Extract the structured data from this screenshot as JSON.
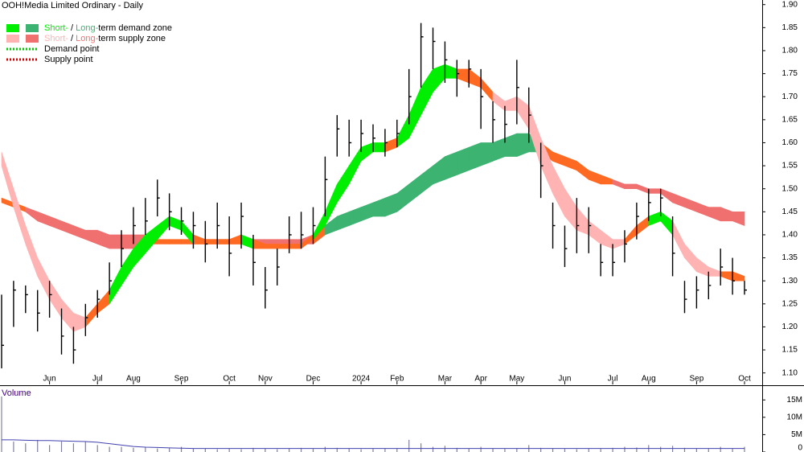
{
  "chart_data": {
    "type": "ohlc",
    "title": "OOH!Media Limited Ordinary - Daily",
    "categories": [
      null,
      null,
      null,
      null,
      "Jun",
      null,
      null,
      null,
      "Jul",
      null,
      null,
      "Aug",
      null,
      null,
      null,
      "Sep",
      null,
      null,
      null,
      "Oct",
      null,
      null,
      "Nov",
      null,
      null,
      null,
      "Dec",
      null,
      null,
      null,
      "2024",
      null,
      null,
      "Feb",
      null,
      null,
      null,
      "Mar",
      null,
      null,
      "Apr",
      null,
      null,
      "May",
      null,
      null,
      null,
      "Jun",
      null,
      null,
      null,
      "Jul",
      null,
      null,
      "Aug",
      null,
      null,
      null,
      "Sep",
      null,
      null,
      null,
      "Oct"
    ],
    "high": [
      1.27,
      1.3,
      1.29,
      1.28,
      1.3,
      1.24,
      1.2,
      1.25,
      1.28,
      1.34,
      1.41,
      1.46,
      1.48,
      1.52,
      1.49,
      1.46,
      1.45,
      1.43,
      1.47,
      1.44,
      1.47,
      1.4,
      1.33,
      1.37,
      1.44,
      1.45,
      1.46,
      1.57,
      1.66,
      1.65,
      1.65,
      1.64,
      1.63,
      1.65,
      1.76,
      1.86,
      1.85,
      1.82,
      1.78,
      1.78,
      1.76,
      1.69,
      1.68,
      1.78,
      1.72,
      1.6,
      1.47,
      1.42,
      1.48,
      1.46,
      1.38,
      1.38,
      1.41,
      1.47,
      1.5,
      1.5,
      1.44,
      1.3,
      1.31,
      1.32,
      1.37,
      1.35,
      1.3
    ],
    "low": [
      1.11,
      1.2,
      1.23,
      1.19,
      1.22,
      1.14,
      1.12,
      1.18,
      1.22,
      1.27,
      1.33,
      1.38,
      1.4,
      1.44,
      1.41,
      1.4,
      1.37,
      1.34,
      1.37,
      1.31,
      1.37,
      1.29,
      1.24,
      1.29,
      1.36,
      1.37,
      1.38,
      1.44,
      1.57,
      1.57,
      1.58,
      1.58,
      1.57,
      1.59,
      1.64,
      1.72,
      1.76,
      1.73,
      1.7,
      1.72,
      1.63,
      1.6,
      1.6,
      1.64,
      1.6,
      1.48,
      1.37,
      1.33,
      1.36,
      1.36,
      1.31,
      1.31,
      1.34,
      1.39,
      1.43,
      1.44,
      1.31,
      1.23,
      1.24,
      1.26,
      1.29,
      1.27,
      1.27
    ],
    "close": [
      1.16,
      1.28,
      1.27,
      1.23,
      1.27,
      1.18,
      1.15,
      1.22,
      1.26,
      1.3,
      1.37,
      1.42,
      1.43,
      1.48,
      1.45,
      1.43,
      1.42,
      1.38,
      1.42,
      1.36,
      1.44,
      1.34,
      1.28,
      1.33,
      1.4,
      1.4,
      1.42,
      1.52,
      1.63,
      1.6,
      1.62,
      1.61,
      1.6,
      1.62,
      1.7,
      1.83,
      1.82,
      1.78,
      1.75,
      1.76,
      1.7,
      1.65,
      1.64,
      1.72,
      1.66,
      1.55,
      1.42,
      1.37,
      1.42,
      1.42,
      1.34,
      1.34,
      1.38,
      1.44,
      1.47,
      1.48,
      1.36,
      1.26,
      1.28,
      1.29,
      1.33,
      1.3,
      1.28
    ],
    "bar_color": "#000000",
    "bands": [
      {
        "upper": [
          1.48,
          1.47,
          1.46,
          1.45,
          1.44,
          1.43,
          1.42,
          1.41,
          1.41,
          1.4,
          1.4,
          1.4,
          1.4,
          1.39,
          1.39,
          1.39,
          1.39,
          1.39,
          1.39,
          1.39,
          1.39,
          1.39,
          1.39,
          1.39,
          1.39,
          1.39,
          1.4,
          1.42,
          1.44,
          1.45,
          1.46,
          1.47,
          1.48,
          1.49,
          1.51,
          1.53,
          1.55,
          1.57,
          1.58,
          1.59,
          1.6,
          1.6,
          1.61,
          1.62,
          1.62,
          1.6,
          1.58,
          1.57,
          1.56,
          1.54,
          1.53,
          1.52,
          1.51,
          1.51,
          1.5,
          1.5,
          1.49,
          1.48,
          1.47,
          1.46,
          1.46,
          1.45,
          1.45
        ],
        "lower": [
          1.47,
          1.46,
          1.45,
          1.43,
          1.42,
          1.41,
          1.4,
          1.39,
          1.38,
          1.37,
          1.37,
          1.37,
          1.38,
          1.38,
          1.38,
          1.38,
          1.38,
          1.38,
          1.38,
          1.38,
          1.38,
          1.38,
          1.38,
          1.38,
          1.38,
          1.38,
          1.38,
          1.4,
          1.41,
          1.42,
          1.43,
          1.44,
          1.44,
          1.45,
          1.47,
          1.49,
          1.51,
          1.52,
          1.53,
          1.54,
          1.55,
          1.56,
          1.57,
          1.57,
          1.58,
          1.58,
          1.56,
          1.55,
          1.54,
          1.52,
          1.51,
          1.51,
          1.5,
          1.5,
          1.49,
          1.49,
          1.47,
          1.46,
          1.45,
          1.44,
          1.43,
          1.43,
          1.42
        ],
        "zone": [
          "mixed",
          "mixed",
          "supply",
          "supply",
          "supply",
          "supply",
          "supply",
          "supply",
          "supply",
          "supply",
          "supply",
          "supply",
          "mixed",
          "mixed",
          "mixed",
          "mixed",
          "mixed",
          "mixed",
          "mixed",
          "mixed",
          "mixed",
          "supply",
          "supply",
          "supply",
          "supply",
          "supply",
          "mixed",
          "demand",
          "demand",
          "demand",
          "demand",
          "demand",
          "demand",
          "demand",
          "demand",
          "demand",
          "demand",
          "demand",
          "demand",
          "demand",
          "demand",
          "demand",
          "demand",
          "demand",
          "demand",
          "mixed",
          "mixed",
          "mixed",
          "mixed",
          "mixed",
          "mixed",
          "supply",
          "supply",
          "supply",
          "supply",
          "supply",
          "supply",
          "supply",
          "supply",
          "supply",
          "supply",
          "supply",
          "supply"
        ],
        "colors": {
          "demand": "#3cb371",
          "supply": "#f07070",
          "mixed": "#ff6a22"
        }
      },
      {
        "upper": [
          1.58,
          1.5,
          1.42,
          1.35,
          1.3,
          1.26,
          1.23,
          1.22,
          1.25,
          1.28,
          1.33,
          1.37,
          1.4,
          1.42,
          1.44,
          1.43,
          1.4,
          1.39,
          1.39,
          1.39,
          1.4,
          1.39,
          1.38,
          1.38,
          1.38,
          1.38,
          1.4,
          1.45,
          1.51,
          1.55,
          1.59,
          1.6,
          1.6,
          1.61,
          1.66,
          1.72,
          1.76,
          1.77,
          1.76,
          1.76,
          1.74,
          1.71,
          1.69,
          1.7,
          1.68,
          1.61,
          1.55,
          1.5,
          1.46,
          1.43,
          1.41,
          1.39,
          1.39,
          1.42,
          1.44,
          1.45,
          1.43,
          1.38,
          1.35,
          1.33,
          1.32,
          1.32,
          1.31
        ],
        "lower": [
          1.55,
          1.46,
          1.38,
          1.31,
          1.26,
          1.22,
          1.19,
          1.2,
          1.23,
          1.25,
          1.29,
          1.33,
          1.36,
          1.39,
          1.42,
          1.41,
          1.38,
          1.38,
          1.38,
          1.38,
          1.38,
          1.37,
          1.37,
          1.37,
          1.37,
          1.37,
          1.39,
          1.42,
          1.47,
          1.51,
          1.56,
          1.58,
          1.58,
          1.59,
          1.61,
          1.66,
          1.71,
          1.74,
          1.74,
          1.73,
          1.72,
          1.69,
          1.67,
          1.67,
          1.63,
          1.55,
          1.49,
          1.44,
          1.41,
          1.4,
          1.38,
          1.37,
          1.38,
          1.4,
          1.42,
          1.43,
          1.4,
          1.35,
          1.32,
          1.31,
          1.31,
          1.3,
          1.3
        ],
        "zone": [
          "supply",
          "supply",
          "supply",
          "supply",
          "supply",
          "supply",
          "supply",
          "mixed",
          "mixed",
          "demand",
          "demand",
          "demand",
          "demand",
          "demand",
          "demand",
          "demand",
          "mixed",
          "mixed",
          "mixed",
          "mixed",
          "demand",
          "mixed",
          "mixed",
          "mixed",
          "mixed",
          "mixed",
          "demand",
          "demand",
          "demand",
          "demand",
          "demand",
          "demand",
          "mixed",
          "demand",
          "demand",
          "demand",
          "demand",
          "demand",
          "mixed",
          "mixed",
          "mixed",
          "supply",
          "supply",
          "supply",
          "supply",
          "supply",
          "supply",
          "supply",
          "supply",
          "supply",
          "supply",
          "supply",
          "mixed",
          "mixed",
          "demand",
          "demand",
          "supply",
          "supply",
          "supply",
          "supply",
          "mixed",
          "mixed",
          "supply"
        ],
        "colors": {
          "demand": "#00ee00",
          "supply": "#ffb3b3",
          "mixed": "#ff6a22"
        }
      }
    ],
    "legend": [
      {
        "short": "Short-",
        "sep": " / ",
        "long": "Long-",
        "rest": "term demand zone",
        "short_color": "#00ee00",
        "long_color": "#3cb371"
      },
      {
        "short": "Short-",
        "sep": " / ",
        "long": "Long-",
        "rest": "term supply zone",
        "short_color": "#ffb3b3",
        "long_color": "#f07070"
      }
    ],
    "points": [
      {
        "label": "Demand point",
        "color": "#00cc00"
      },
      {
        "label": "Supply point",
        "color": "#dd0000"
      }
    ],
    "ylim": [
      1.075,
      1.91
    ],
    "yticks": [
      {
        "value": 1.1,
        "label": "1.10"
      },
      1.15,
      {
        "value": 1.2,
        "label": "1.20"
      },
      1.25,
      {
        "value": 1.3,
        "label": "1.30"
      },
      1.35,
      {
        "value": 1.4,
        "label": "1.40"
      },
      1.45,
      {
        "value": 1.5,
        "label": "1.50"
      },
      1.55,
      {
        "value": 1.6,
        "label": "1.60"
      },
      1.65,
      {
        "value": 1.7,
        "label": "1.70"
      },
      1.75,
      {
        "value": 1.8,
        "label": "1.80"
      },
      1.85,
      {
        "value": 1.9,
        "label": "1.90"
      }
    ],
    "volume": {
      "label": "Volume",
      "values": [
        16000000,
        3000000,
        2500000,
        3500000,
        2000000,
        3000000,
        2500000,
        3000000,
        2000000,
        1500000,
        1500000,
        1200000,
        1500000,
        1000000,
        1200000,
        1500000,
        1000000,
        1000000,
        800000,
        1000000,
        800000,
        1200000,
        1000000,
        800000,
        1000000,
        1200000,
        900000,
        1500000,
        1200000,
        1000000,
        800000,
        900000,
        1000000,
        1000000,
        3500000,
        2500000,
        1500000,
        1800000,
        1200000,
        1000000,
        1500000,
        1000000,
        900000,
        1000000,
        2000000,
        1200000,
        1000000,
        900000,
        800000,
        1000000,
        900000,
        1200000,
        1500000,
        1300000,
        2000000,
        1500000,
        1800000,
        1200000,
        1000000,
        900000,
        1500000,
        1000000,
        1500000
      ],
      "average": [
        3500000,
        3500000,
        3400000,
        3300000,
        3300000,
        3200000,
        3100000,
        3000000,
        2800000,
        2400000,
        2000000,
        1600000,
        1400000,
        1300000,
        1200000,
        1100000,
        1000000,
        1000000,
        1000000,
        1000000,
        1000000,
        1000000,
        1000000,
        1000000,
        1000000,
        1000000,
        1000000,
        1000000,
        1000000,
        1000000,
        1000000,
        1000000,
        1000000,
        1000000,
        1000000,
        1000000,
        1000000,
        1000000,
        1000000,
        1000000,
        1000000,
        1000000,
        1000000,
        1000000,
        1000000,
        1000000,
        1000000,
        1000000,
        1000000,
        1000000,
        1000000,
        1000000,
        1000000,
        1000000,
        1000000,
        1000000,
        1000000,
        1000000,
        1000000,
        1000000,
        1000000,
        1000000,
        1000000
      ],
      "bar_color": "#8080a0",
      "average_color": "#4040b0",
      "ylim": [
        0,
        19000000
      ],
      "yticks": [
        0,
        {
          "value": 5000000,
          "label": "5M"
        },
        {
          "value": 10000000,
          "label": "10M"
        },
        {
          "value": 15000000,
          "label": "15M"
        }
      ]
    }
  }
}
